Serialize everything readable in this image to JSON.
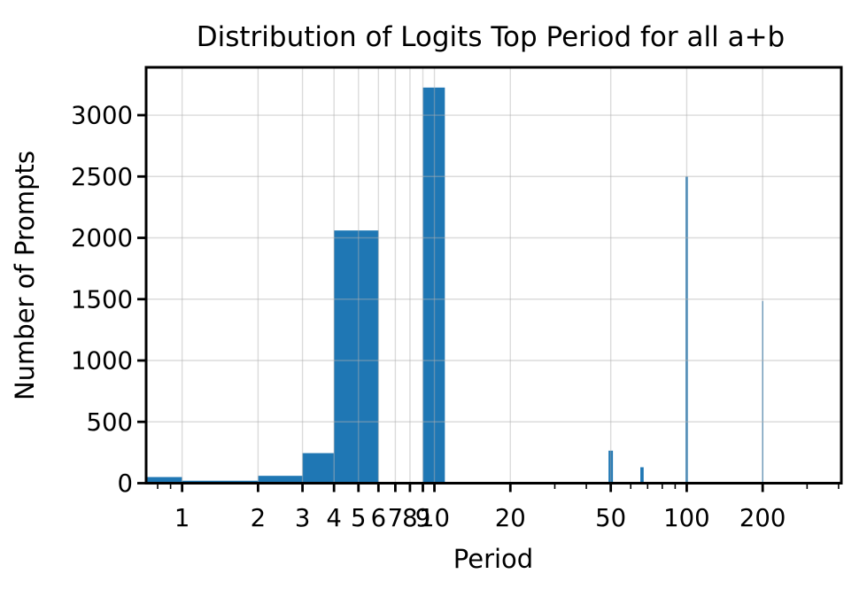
{
  "chart_data": {
    "type": "bar",
    "title": "Distribution of Logits Top Period for all a+b",
    "xlabel": "Period",
    "ylabel": "Number of Prompts",
    "x_scale": "log",
    "xlim": [
      0.72,
      410
    ],
    "ylim": [
      0,
      3390
    ],
    "grid": true,
    "legend": false,
    "bar_color": "#1f77b4",
    "grid_color": "#b0b0b0",
    "spine_color": "#000000",
    "x_major_tick_values": [
      1,
      2,
      3,
      4,
      5,
      6,
      7,
      8,
      9,
      10,
      20,
      50,
      100,
      200
    ],
    "x_major_tick_labels": [
      "1",
      "2",
      "3",
      "4",
      "5",
      "6",
      "7",
      "8",
      "9",
      "10",
      "20",
      "50",
      "100",
      "200"
    ],
    "x_minor_tick_values": [
      0.8,
      0.9,
      30,
      40,
      60,
      70,
      80,
      90,
      300,
      400
    ],
    "y_tick_values": [
      0,
      500,
      1000,
      1500,
      2000,
      2500,
      3000
    ],
    "y_tick_labels": [
      "0",
      "500",
      "1000",
      "1500",
      "2000",
      "2500",
      "3000"
    ],
    "bars": [
      {
        "x0": 0.72,
        "x1": 1,
        "count": 50
      },
      {
        "x0": 1,
        "x1": 2,
        "count": 20
      },
      {
        "x0": 2,
        "x1": 3,
        "count": 60
      },
      {
        "x0": 3,
        "x1": 4,
        "count": 245
      },
      {
        "x0": 4,
        "x1": 6,
        "count": 2060
      },
      {
        "x0": 9,
        "x1": 11,
        "count": 3225
      },
      {
        "x0": 49,
        "x1": 51,
        "count": 265
      },
      {
        "x0": 65.5,
        "x1": 67.5,
        "count": 130
      },
      {
        "x0": 99,
        "x1": 101,
        "count": 2500
      },
      {
        "x0": 199,
        "x1": 201,
        "count": 1485
      }
    ]
  }
}
